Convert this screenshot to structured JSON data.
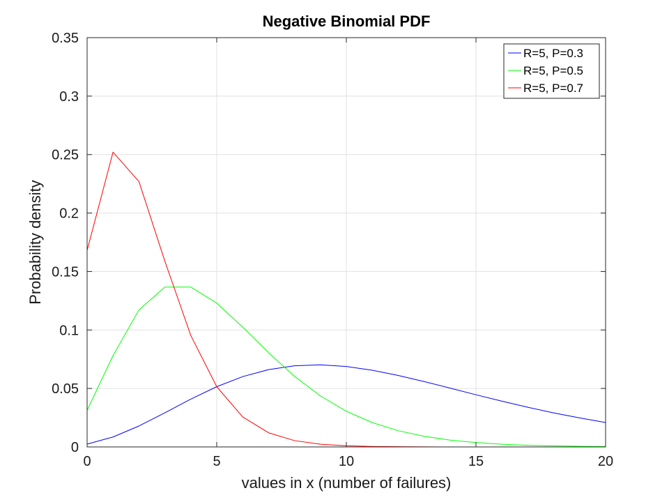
{
  "chart_data": {
    "type": "line",
    "title": "Negative Binomial PDF",
    "xlabel": "values in x (number of failures)",
    "ylabel": "Probability density",
    "xlim": [
      0,
      20
    ],
    "ylim": [
      0,
      0.35
    ],
    "x_ticks": [
      0,
      5,
      10,
      15,
      20
    ],
    "y_ticks": [
      0,
      0.05,
      0.1,
      0.15,
      0.2,
      0.25,
      0.3,
      0.35
    ],
    "x_tick_labels": [
      "0",
      "5",
      "10",
      "15",
      "20"
    ],
    "y_tick_labels": [
      "0",
      "0.05",
      "0.1",
      "0.15",
      "0.2",
      "0.25",
      "0.3",
      "0.35"
    ],
    "grid": true,
    "legend_position": "top-right",
    "x": [
      0,
      1,
      2,
      3,
      4,
      5,
      6,
      7,
      8,
      9,
      10,
      11,
      12,
      13,
      14,
      15,
      16,
      17,
      18,
      19,
      20
    ],
    "series": [
      {
        "name": "R=5, P=0.3",
        "color": "#0000ff",
        "values": [
          0.0024,
          0.0085,
          0.0179,
          0.0292,
          0.0409,
          0.0515,
          0.0601,
          0.0661,
          0.0694,
          0.0702,
          0.0688,
          0.0656,
          0.0611,
          0.0559,
          0.0503,
          0.0446,
          0.0391,
          0.0339,
          0.0291,
          0.0248,
          0.0209
        ]
      },
      {
        "name": "R=5, P=0.5",
        "color": "#00ff00",
        "values": [
          0.0313,
          0.0781,
          0.1172,
          0.1367,
          0.1367,
          0.123,
          0.1025,
          0.0806,
          0.0604,
          0.0436,
          0.0305,
          0.0208,
          0.0139,
          0.0091,
          0.0058,
          0.0037,
          0.0023,
          0.0014,
          0.0009,
          0.0005,
          0.0003
        ]
      },
      {
        "name": "R=5, P=0.7",
        "color": "#ff0000",
        "values": [
          0.1681,
          0.2521,
          0.2269,
          0.1588,
          0.0953,
          0.0515,
          0.0257,
          0.0121,
          0.0054,
          0.0023,
          0.001,
          0.0004,
          0.0002,
          0.0001,
          0.0,
          0.0,
          0.0,
          0.0,
          0.0,
          0.0,
          0.0
        ]
      }
    ]
  }
}
